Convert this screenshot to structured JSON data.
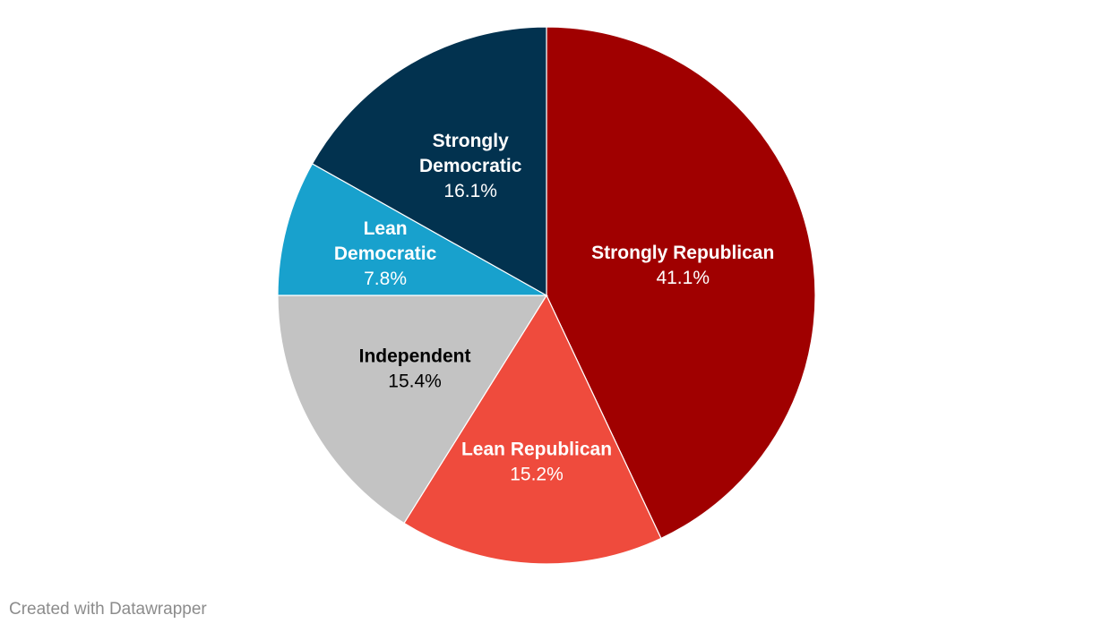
{
  "chart_data": {
    "type": "pie",
    "title": "",
    "slices": [
      {
        "label": "Strongly Republican",
        "value": 41.1,
        "display": "41.1%",
        "color": "#a00000",
        "text_color": "#ffffff"
      },
      {
        "label": "Lean Republican",
        "value": 15.2,
        "display": "15.2%",
        "color": "#ef4b3d",
        "text_color": "#ffffff"
      },
      {
        "label": "Independent",
        "value": 15.4,
        "display": "15.4%",
        "color": "#c3c3c3",
        "text_color": "#000000"
      },
      {
        "label": "Lean Democratic",
        "value": 7.8,
        "display": "7.8%",
        "color": "#18a1cd",
        "text_color": "#ffffff"
      },
      {
        "label": "Strongly Democratic",
        "value": 16.1,
        "display": "16.1%",
        "color": "#02324f",
        "text_color": "#ffffff"
      }
    ],
    "start": "12 o'clock",
    "direction": "clockwise"
  },
  "footer": {
    "credit": "Created with Datawrapper"
  }
}
